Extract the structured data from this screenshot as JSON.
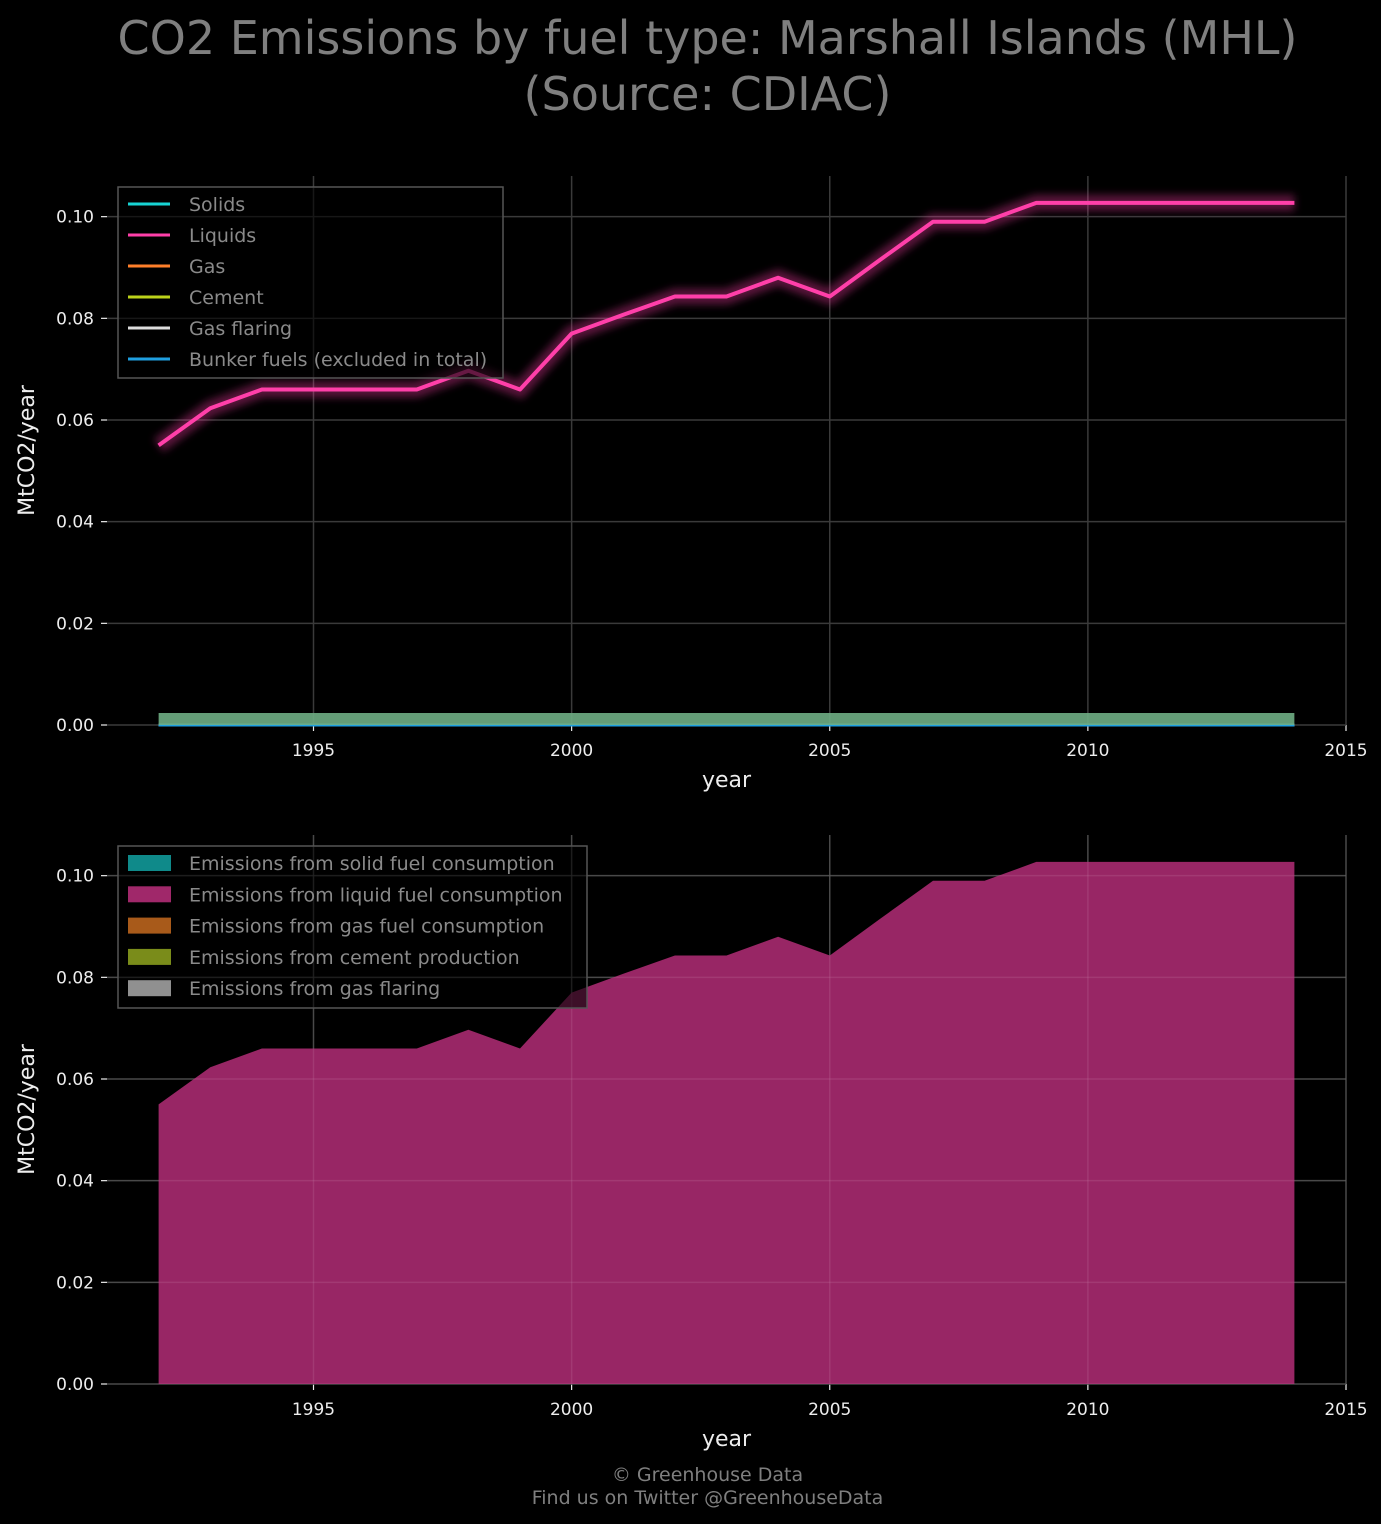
{
  "title_line1": "CO2 Emissions by fuel type: Marshall Islands (MHL)",
  "title_line2": "(Source: CDIAC)",
  "footer_line1": "© Greenhouse Data",
  "footer_line2": "Find us on Twitter @GreenhouseData",
  "colors": {
    "solids": "#17d3d3",
    "liquids": "#ff3fa9",
    "gas": "#ff7f2a",
    "cement": "#bcd21a",
    "gas_flaring": "#dddddd",
    "bunker": "#1f9fe0",
    "area_solid": "#0f8a8a",
    "area_liquid": "#a0286a",
    "area_gas": "#a85a1a",
    "area_cement": "#7a8c1a",
    "area_flaring": "#909090"
  },
  "chart_data": [
    {
      "type": "line",
      "xlabel": "year",
      "ylabel": "MtCO2/year",
      "xlim": [
        1991,
        2015
      ],
      "ylim": [
        0,
        0.108
      ],
      "xticks": [
        "1995",
        "2000",
        "2005",
        "2010",
        "2015"
      ],
      "yticks": [
        "0.00",
        "0.02",
        "0.04",
        "0.06",
        "0.08",
        "0.10"
      ],
      "grid": true,
      "legend_position": "top-left",
      "x": [
        1992,
        1993,
        1994,
        1995,
        1996,
        1997,
        1998,
        1999,
        2000,
        2001,
        2002,
        2003,
        2004,
        2005,
        2006,
        2007,
        2008,
        2009,
        2010,
        2011,
        2012,
        2013,
        2014
      ],
      "series": [
        {
          "name": "Solids",
          "values": [
            0,
            0,
            0,
            0,
            0,
            0,
            0,
            0,
            0,
            0,
            0,
            0,
            0,
            0,
            0,
            0,
            0,
            0,
            0,
            0,
            0,
            0,
            0
          ]
        },
        {
          "name": "Liquids",
          "values": [
            0.055,
            0.0623,
            0.066,
            0.066,
            0.066,
            0.066,
            0.0697,
            0.066,
            0.077,
            0.0807,
            0.0843,
            0.0843,
            0.088,
            0.0843,
            0.0917,
            0.099,
            0.099,
            0.1027,
            0.1027,
            0.1027,
            0.1027,
            0.1027,
            0.1027
          ]
        },
        {
          "name": "Gas",
          "values": [
            0,
            0,
            0,
            0,
            0,
            0,
            0,
            0,
            0,
            0,
            0,
            0,
            0,
            0,
            0,
            0,
            0,
            0,
            0,
            0,
            0,
            0,
            0
          ]
        },
        {
          "name": "Cement",
          "values": [
            0,
            0,
            0,
            0,
            0,
            0,
            0,
            0,
            0,
            0,
            0,
            0,
            0,
            0,
            0,
            0,
            0,
            0,
            0,
            0,
            0,
            0,
            0
          ]
        },
        {
          "name": "Gas flaring",
          "values": [
            0,
            0,
            0,
            0,
            0,
            0,
            0,
            0,
            0,
            0,
            0,
            0,
            0,
            0,
            0,
            0,
            0,
            0,
            0,
            0,
            0,
            0,
            0
          ]
        },
        {
          "name": "Bunker fuels (excluded in total)",
          "values": [
            0,
            0,
            0,
            0,
            0,
            0,
            0,
            0,
            0,
            0,
            0,
            0,
            0,
            0,
            0,
            0,
            0,
            0,
            0,
            0,
            0,
            0,
            0
          ]
        }
      ]
    },
    {
      "type": "area",
      "xlabel": "year",
      "ylabel": "MtCO2/year",
      "xlim": [
        1991,
        2015
      ],
      "ylim": [
        0,
        0.108
      ],
      "xticks": [
        "1995",
        "2000",
        "2005",
        "2010",
        "2015"
      ],
      "yticks": [
        "0.00",
        "0.02",
        "0.04",
        "0.06",
        "0.08",
        "0.10"
      ],
      "grid": true,
      "legend_position": "top-left",
      "x": [
        1992,
        1993,
        1994,
        1995,
        1996,
        1997,
        1998,
        1999,
        2000,
        2001,
        2002,
        2003,
        2004,
        2005,
        2006,
        2007,
        2008,
        2009,
        2010,
        2011,
        2012,
        2013,
        2014
      ],
      "series": [
        {
          "name": "Emissions from solid fuel consumption",
          "values": [
            0,
            0,
            0,
            0,
            0,
            0,
            0,
            0,
            0,
            0,
            0,
            0,
            0,
            0,
            0,
            0,
            0,
            0,
            0,
            0,
            0,
            0,
            0
          ]
        },
        {
          "name": "Emissions from liquid fuel consumption",
          "values": [
            0.055,
            0.0623,
            0.066,
            0.066,
            0.066,
            0.066,
            0.0697,
            0.066,
            0.077,
            0.0807,
            0.0843,
            0.0843,
            0.088,
            0.0843,
            0.0917,
            0.099,
            0.099,
            0.1027,
            0.1027,
            0.1027,
            0.1027,
            0.1027,
            0.1027
          ]
        },
        {
          "name": "Emissions from gas fuel consumption",
          "values": [
            0,
            0,
            0,
            0,
            0,
            0,
            0,
            0,
            0,
            0,
            0,
            0,
            0,
            0,
            0,
            0,
            0,
            0,
            0,
            0,
            0,
            0,
            0
          ]
        },
        {
          "name": "Emissions from cement production",
          "values": [
            0,
            0,
            0,
            0,
            0,
            0,
            0,
            0,
            0,
            0,
            0,
            0,
            0,
            0,
            0,
            0,
            0,
            0,
            0,
            0,
            0,
            0,
            0
          ]
        },
        {
          "name": "Emissions from gas flaring",
          "values": [
            0,
            0,
            0,
            0,
            0,
            0,
            0,
            0,
            0,
            0,
            0,
            0,
            0,
            0,
            0,
            0,
            0,
            0,
            0,
            0,
            0,
            0,
            0
          ]
        }
      ]
    }
  ]
}
